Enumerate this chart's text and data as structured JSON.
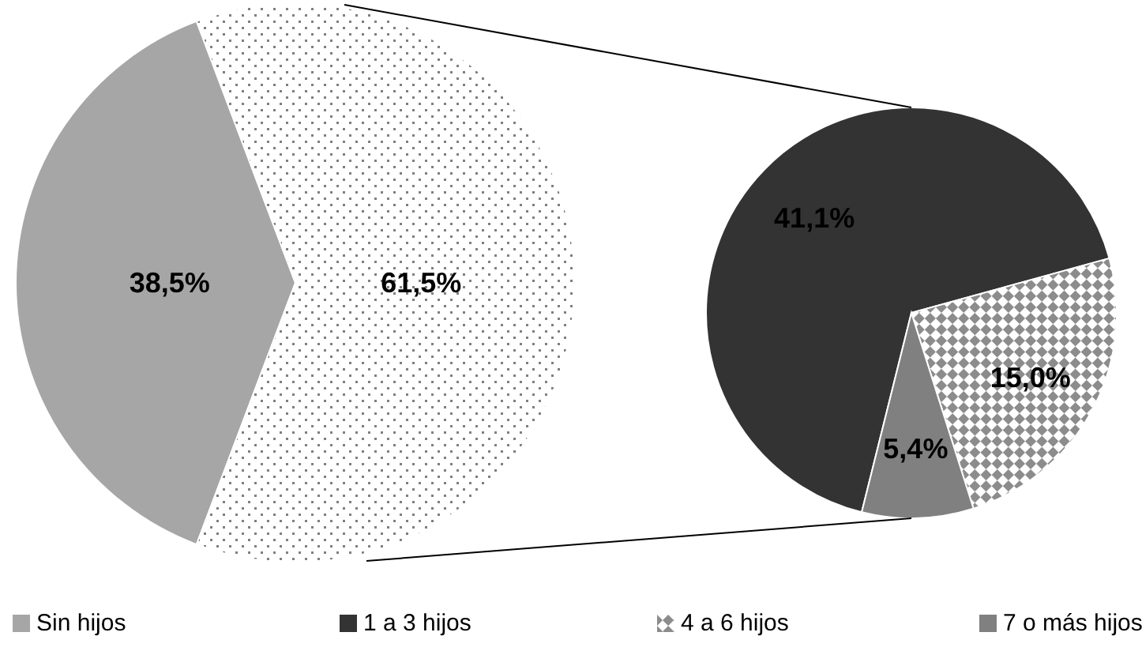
{
  "chart_data": [
    {
      "type": "pie",
      "categories": [
        "Sin hijos",
        null
      ],
      "values": [
        38.5,
        61.5
      ],
      "colors": [
        "#a6a6a6",
        "#ffffff"
      ],
      "value_labels": [
        "38,5%",
        "61,5%"
      ],
      "legend": "bottom"
    },
    {
      "type": "pie",
      "categories": [
        "1 a 3 hijos",
        "4 a 6 hijos",
        "7 o más hijos"
      ],
      "values": [
        41.1,
        15.0,
        5.4
      ],
      "colors": [
        "#333333",
        "#ffffff",
        "#808080"
      ],
      "value_labels": [
        "41,1%",
        "15,0%",
        "5,4%"
      ],
      "legend": "bottom"
    }
  ]
}
